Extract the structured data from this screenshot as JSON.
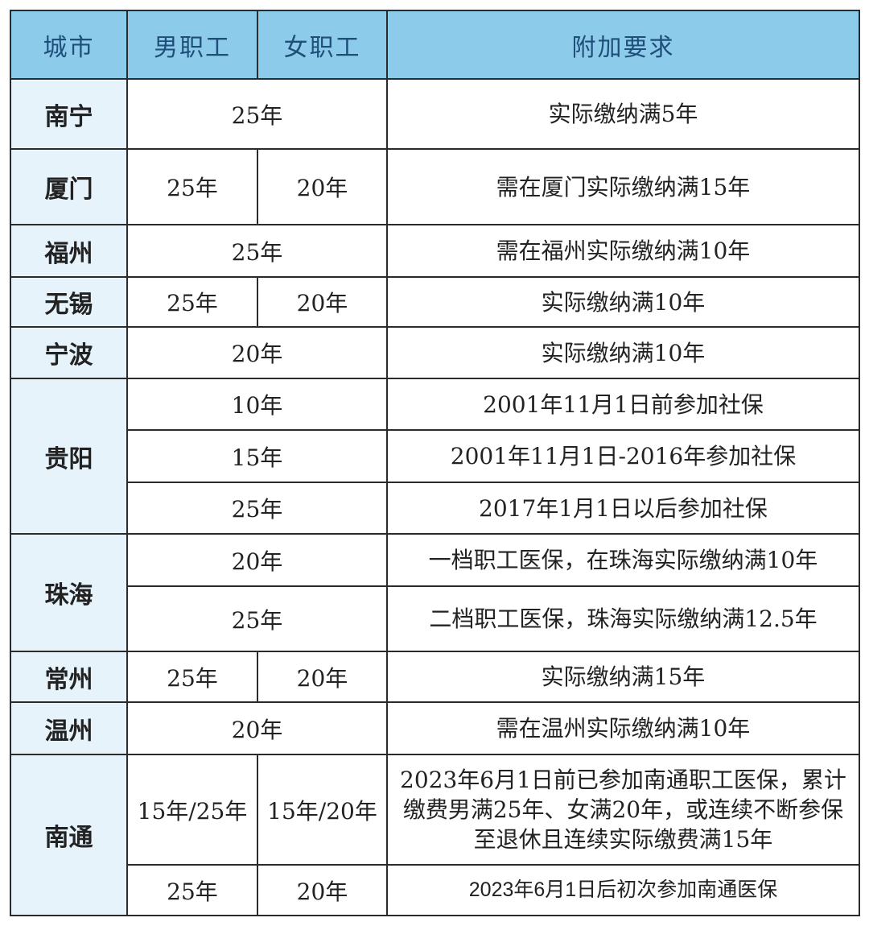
{
  "header": {
    "city": "城市",
    "male": "男职工",
    "female": "女职工",
    "note": "附加要求"
  },
  "colors": {
    "header_bg": "#8dcbea",
    "header_text": "#1f4e79",
    "city_bg": "#e6f3fb"
  },
  "cities": [
    {
      "name": "南宁",
      "entries": [
        {
          "years": "25年",
          "note": "实际缴纳满5年"
        }
      ]
    },
    {
      "name": "厦门",
      "entries": [
        {
          "male": "25年",
          "female": "20年",
          "note": "需在厦门实际缴纳满15年"
        }
      ]
    },
    {
      "name": "福州",
      "entries": [
        {
          "years": "25年",
          "note": "需在福州实际缴纳满10年"
        }
      ]
    },
    {
      "name": "无锡",
      "entries": [
        {
          "male": "25年",
          "female": "20年",
          "note": "实际缴纳满10年"
        }
      ]
    },
    {
      "name": "宁波",
      "entries": [
        {
          "years": "20年",
          "note": "实际缴纳满10年"
        }
      ]
    },
    {
      "name": "贵阳",
      "entries": [
        {
          "years": "10年",
          "note": "2001年11月1日前参加社保"
        },
        {
          "years": "15年",
          "note": "2001年11月1日-2016年参加社保"
        },
        {
          "years": "25年",
          "note": "2017年1月1日以后参加社保"
        }
      ]
    },
    {
      "name": "珠海",
      "entries": [
        {
          "years": "20年",
          "note": "一档职工医保，在珠海实际缴纳满10年"
        },
        {
          "years": "25年",
          "note": "二档职工医保，珠海实际缴纳满12.5年"
        }
      ]
    },
    {
      "name": "常州",
      "entries": [
        {
          "male": "25年",
          "female": "20年",
          "note": "实际缴纳满15年"
        }
      ]
    },
    {
      "name": "温州",
      "entries": [
        {
          "years": "20年",
          "note": "需在温州实际缴纳满10年"
        }
      ]
    },
    {
      "name": "南通",
      "entries": [
        {
          "male": "15年/25年",
          "female": "15年/20年",
          "note": "2023年6月1日前已参加南通职工医保，累计缴费男满25年、女满20年，或连续不断参保至退休且连续实际缴费满15年"
        },
        {
          "male": "25年",
          "female": "20年",
          "note": "2023年6月1日后初次参加南通医保"
        }
      ]
    }
  ]
}
